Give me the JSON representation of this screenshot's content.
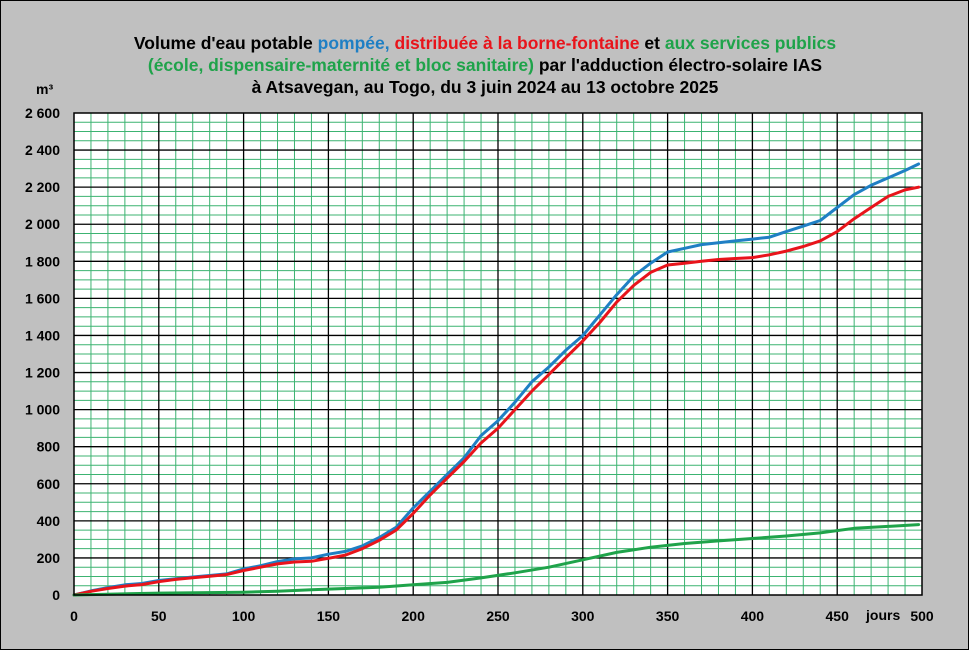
{
  "title": {
    "seg1": "Volume d'eau potable ",
    "seg2_blue": "pompée,",
    "seg3": " ",
    "seg4_red": "distribuée à la borne-fontaine",
    "seg5": " et ",
    "seg6_green": "aux services publics",
    "seg7_green": "(école, dispensaire-maternité et bloc sanitaire)",
    "seg8": " par l'adduction électro-solaire IAS",
    "seg9": "à Atsavegan, au Togo, du 3 juin 2024 au 13 octobre 2025"
  },
  "chart_data": {
    "type": "line",
    "ylabel": "m³",
    "xlabel": "jours",
    "xlim": [
      0,
      500
    ],
    "ylim": [
      0,
      2600
    ],
    "xticks": [
      0,
      50,
      100,
      150,
      200,
      250,
      300,
      350,
      400,
      450,
      500
    ],
    "xtick_labels": [
      "0",
      "50",
      "100",
      "150",
      "200",
      "250",
      "300",
      "350",
      "400",
      "450",
      "500"
    ],
    "yticks": [
      0,
      200,
      400,
      600,
      800,
      1000,
      1200,
      1400,
      1600,
      1800,
      2000,
      2200,
      2400,
      2600
    ],
    "ytick_labels": [
      "0",
      "200",
      "400",
      "600",
      "800",
      "1 000",
      "1 200",
      "1 400",
      "1 600",
      "1 800",
      "2 000",
      "2 200",
      "2 400",
      "2 600"
    ],
    "grid": "on",
    "colors": {
      "background": "#c0c0c0",
      "plot_background": "#ffffff",
      "grid_minor": "#3cb371",
      "grid_major": "#000000"
    },
    "series": [
      {
        "color": "#1f7fc4",
        "x": [
          0,
          10,
          20,
          30,
          40,
          50,
          60,
          70,
          80,
          90,
          100,
          110,
          120,
          130,
          140,
          150,
          160,
          170,
          180,
          190,
          200,
          210,
          220,
          230,
          240,
          250,
          260,
          270,
          280,
          290,
          300,
          310,
          320,
          330,
          340,
          350,
          360,
          370,
          380,
          390,
          400,
          410,
          420,
          430,
          440,
          450,
          460,
          470,
          480,
          490,
          498
        ],
        "y": [
          0,
          22,
          40,
          55,
          62,
          78,
          88,
          97,
          105,
          114,
          140,
          158,
          180,
          195,
          200,
          220,
          235,
          265,
          310,
          365,
          470,
          560,
          650,
          740,
          860,
          940,
          1040,
          1150,
          1230,
          1320,
          1400,
          1510,
          1620,
          1720,
          1790,
          1850,
          1870,
          1890,
          1900,
          1910,
          1920,
          1930,
          1960,
          1990,
          2020,
          2090,
          2160,
          2210,
          2250,
          2290,
          2325
        ]
      },
      {
        "color": "#e8141b",
        "x": [
          0,
          10,
          20,
          30,
          40,
          50,
          60,
          70,
          80,
          90,
          100,
          110,
          120,
          130,
          140,
          150,
          160,
          170,
          180,
          190,
          200,
          210,
          220,
          230,
          240,
          250,
          260,
          270,
          280,
          290,
          300,
          310,
          320,
          330,
          340,
          350,
          360,
          370,
          380,
          390,
          400,
          410,
          420,
          430,
          440,
          450,
          460,
          470,
          480,
          490,
          498
        ],
        "y": [
          0,
          20,
          35,
          48,
          56,
          72,
          84,
          93,
          101,
          110,
          132,
          150,
          168,
          178,
          182,
          198,
          215,
          250,
          295,
          350,
          440,
          540,
          630,
          720,
          820,
          900,
          1000,
          1100,
          1190,
          1280,
          1370,
          1470,
          1580,
          1670,
          1740,
          1780,
          1790,
          1800,
          1810,
          1815,
          1820,
          1835,
          1855,
          1880,
          1910,
          1960,
          2030,
          2090,
          2150,
          2185,
          2200
        ]
      },
      {
        "color": "#1fa34a",
        "x": [
          0,
          50,
          100,
          120,
          140,
          160,
          180,
          200,
          220,
          240,
          260,
          280,
          300,
          320,
          340,
          360,
          380,
          400,
          420,
          440,
          460,
          480,
          498
        ],
        "y": [
          0,
          10,
          15,
          20,
          28,
          35,
          42,
          55,
          68,
          92,
          120,
          150,
          190,
          230,
          258,
          278,
          292,
          305,
          318,
          335,
          360,
          370,
          380
        ]
      }
    ]
  }
}
